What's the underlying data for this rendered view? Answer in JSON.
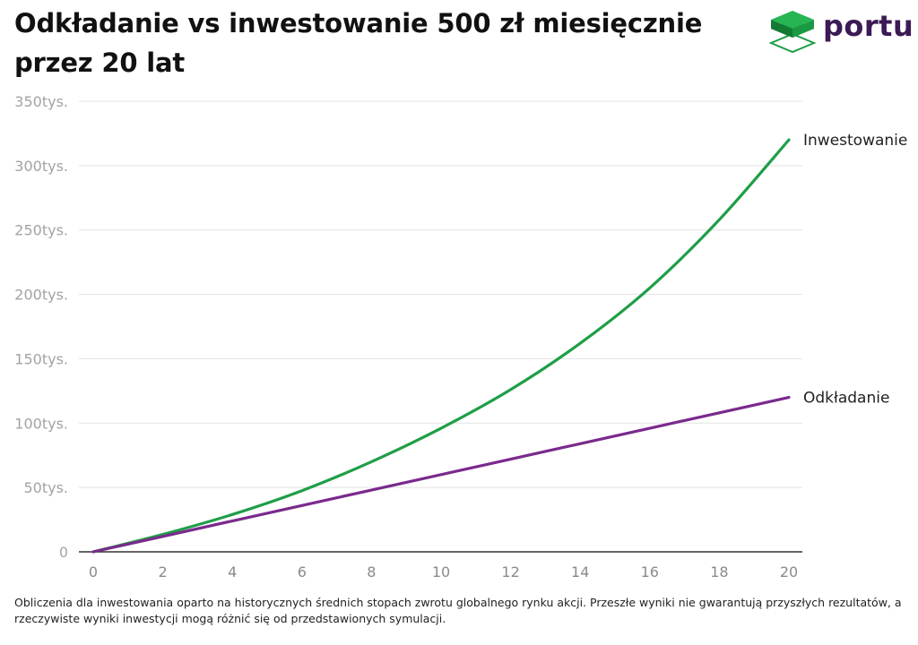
{
  "title": "Odkładanie vs inwestowanie 500 zł miesięcznie przez 20 lat",
  "brand": {
    "name": "portu",
    "text_color": "#3b1a55",
    "icon_color": "#1e9e48",
    "icon": "stacked-layers-logo-icon"
  },
  "footnote": "Obliczenia dla inwestowania oparto na historycznych średnich stopach zwrotu globalnego rynku akcji. Przeszłe wyniki nie gwarantują przyszłych rezultatów, a rzeczywiste wyniki inwestycji mogą różnić się od przedstawionych symulacji.",
  "chart_data": {
    "type": "line",
    "title": "Odkładanie vs inwestowanie 500 zł miesięcznie przez 20 lat",
    "xlabel": "",
    "ylabel": "",
    "xlim": [
      0,
      20
    ],
    "ylim": [
      0,
      350000
    ],
    "grid": true,
    "legend": "series labels at right end of lines",
    "x_ticks": [
      "0",
      "2",
      "4",
      "6",
      "8",
      "10",
      "12",
      "14",
      "16",
      "18",
      "20"
    ],
    "y_ticks": [
      "0",
      "50tys.",
      "100tys.",
      "150tys.",
      "200tys.",
      "250tys.",
      "300tys.",
      "350tys."
    ],
    "x": [
      0,
      2,
      4,
      6,
      8,
      10,
      12,
      14,
      16,
      18,
      20
    ],
    "series": [
      {
        "name": "Inwestowanie",
        "color": "#1f9e48",
        "values": [
          0,
          13500,
          29000,
          47500,
          70000,
          96000,
          126000,
          162000,
          205000,
          258000,
          320000
        ]
      },
      {
        "name": "Odkładanie",
        "color": "#7a2a8c",
        "values": [
          0,
          12000,
          24000,
          36000,
          48000,
          60000,
          72000,
          84000,
          96000,
          108000,
          120000
        ]
      }
    ]
  }
}
